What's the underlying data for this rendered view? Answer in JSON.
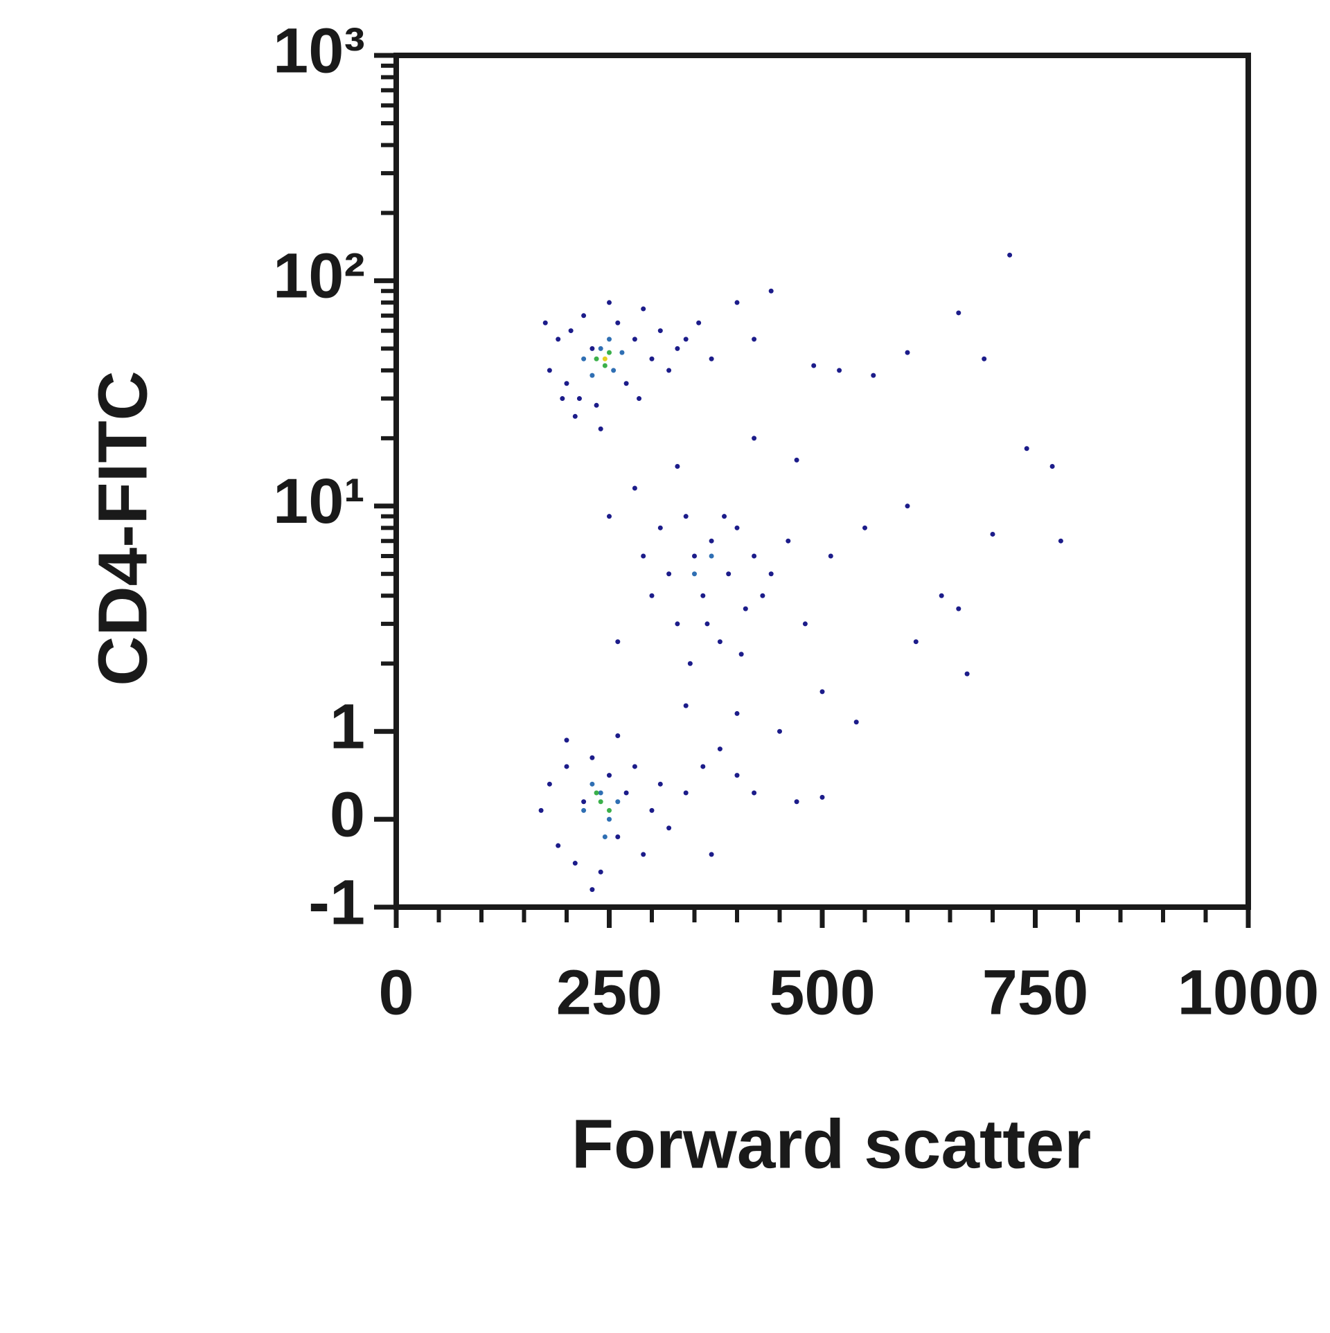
{
  "chart_data": {
    "type": "scatter",
    "xlabel": "Forward scatter",
    "ylabel": "CD4-FITC",
    "xlim": [
      0,
      1000
    ],
    "xticks": [
      0,
      250,
      500,
      750,
      1000
    ],
    "xminorticks": [
      50,
      100,
      150,
      200,
      300,
      350,
      400,
      450,
      550,
      600,
      650,
      700,
      800,
      850,
      900,
      950
    ],
    "ylim": [
      -1,
      1000
    ],
    "yscale": "symlog",
    "yticks": [
      -1,
      0,
      1,
      {
        "value": 10,
        "label": "10¹"
      },
      {
        "value": 100,
        "label": "10²"
      },
      {
        "value": 1000,
        "label": "10³"
      }
    ],
    "yminorticks": [
      2,
      3,
      4,
      5,
      6,
      7,
      8,
      9,
      20,
      30,
      40,
      50,
      60,
      70,
      80,
      90,
      200,
      300,
      400,
      500,
      600,
      700,
      800,
      900
    ],
    "series": [
      {
        "color": "#1c1c8a",
        "x": [
          180,
          190,
          200,
          205,
          215,
          220,
          230,
          235,
          260,
          270,
          280,
          290,
          300,
          310,
          320,
          330,
          175,
          195,
          250,
          285,
          340,
          355,
          370,
          400,
          420,
          440,
          490,
          520,
          560,
          600,
          660,
          690,
          720,
          210,
          240,
          310,
          320,
          330,
          340,
          350,
          360,
          370,
          380,
          390,
          400,
          410,
          420,
          430,
          300,
          290,
          345,
          365,
          385,
          405,
          440,
          460,
          480,
          510,
          550,
          600,
          640,
          660,
          700,
          740,
          770,
          780,
          470,
          420,
          330,
          280,
          250,
          260,
          340,
          400,
          450,
          500,
          540,
          610,
          670,
          170,
          180,
          190,
          200,
          210,
          220,
          230,
          240,
          250,
          260,
          270,
          280,
          290,
          300,
          310,
          320,
          340,
          360,
          380,
          400,
          420,
          470,
          500,
          230,
          370,
          200,
          260
        ],
        "values": [
          40,
          55,
          35,
          60,
          30,
          70,
          50,
          28,
          65,
          35,
          55,
          75,
          45,
          60,
          40,
          50,
          65,
          30,
          80,
          30,
          55,
          65,
          45,
          80,
          55,
          90,
          42,
          40,
          38,
          48,
          72,
          45,
          130,
          25,
          22,
          8,
          5,
          3,
          9,
          6,
          4,
          7,
          2.5,
          5,
          8,
          3.5,
          6,
          4,
          4,
          6,
          2,
          3,
          9,
          2.2,
          5,
          7,
          3,
          6,
          8,
          10,
          4,
          3.5,
          7.5,
          18,
          15,
          7,
          16,
          20,
          15,
          12,
          9,
          2.5,
          1.3,
          1.2,
          1,
          1.5,
          1.1,
          2.5,
          1.8,
          0.1,
          0.4,
          -0.3,
          0.6,
          -0.5,
          0.2,
          0.7,
          -0.6,
          0.5,
          -0.2,
          0.3,
          0.6,
          -0.4,
          0.1,
          0.4,
          -0.1,
          0.3,
          0.6,
          0.8,
          0.5,
          0.3,
          0.2,
          0.25,
          -0.8,
          -0.4,
          0.9,
          0.95
        ]
      },
      {
        "color": "#2f6fb3",
        "x": [
          220,
          240,
          255,
          265,
          230,
          250,
          220,
          240,
          250,
          230,
          260,
          245,
          350,
          370
        ],
        "values": [
          45,
          50,
          40,
          48,
          38,
          55,
          0.1,
          0.3,
          0,
          0.4,
          0.2,
          -0.2,
          5,
          6
        ]
      },
      {
        "color": "#3bb04a",
        "x": [
          235,
          245,
          250,
          240,
          250,
          235
        ],
        "values": [
          45,
          42,
          48,
          0.2,
          0.1,
          0.3
        ]
      },
      {
        "color": "#e6cf1f",
        "x": [
          245
        ],
        "values": [
          45
        ]
      }
    ]
  }
}
